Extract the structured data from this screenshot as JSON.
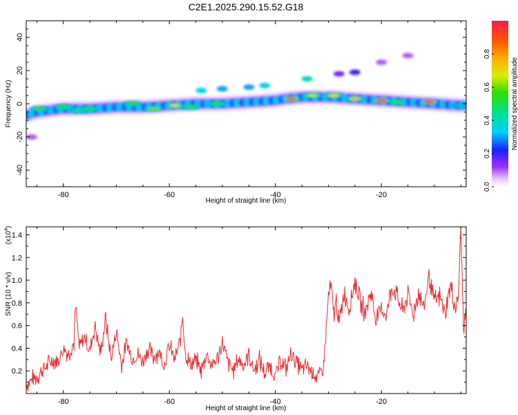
{
  "figure_title": "C2E1.2025.290.15.52.G18",
  "colors": {
    "snr_line": "#e8292d",
    "axis": "#000000"
  },
  "chart_data": [
    {
      "type": "heatmap",
      "title": "C2E1.2025.290.15.52.G18",
      "xlabel": "Height of straight line (km)",
      "ylabel": "Frequency (Hz)",
      "xlim": [
        -87,
        -4
      ],
      "ylim": [
        -50,
        50
      ],
      "xticks": [
        -80,
        -60,
        -40,
        -20
      ],
      "yticks": [
        40,
        20,
        0,
        -20,
        -40
      ],
      "colorbar": {
        "label": "Normalized spectral amplitude",
        "range": [
          0,
          1
        ],
        "ticks": [
          "0.0",
          "0.2",
          "0.4",
          "0.6",
          "0.8"
        ],
        "tick_values": [
          0,
          0.2,
          0.4,
          0.6,
          0.8
        ]
      },
      "ridge": {
        "x": [
          -87,
          -85,
          -80,
          -75,
          -70,
          -65,
          -60,
          -55,
          -50,
          -45,
          -40,
          -38,
          -35,
          -30,
          -25,
          -20,
          -15,
          -10,
          -5
        ],
        "freq": [
          -7,
          -5,
          -3,
          -3,
          -2,
          -2,
          -1,
          0,
          0,
          1,
          2,
          3,
          4,
          4,
          3,
          2,
          1,
          0,
          -1
        ]
      },
      "hotspots": [
        {
          "x": -84.5,
          "f": -3,
          "amp": 0.55
        },
        {
          "x": -80,
          "f": -2,
          "amp": 0.55
        },
        {
          "x": -77,
          "f": -4,
          "amp": 0.5
        },
        {
          "x": -75,
          "f": -3,
          "amp": 0.5
        },
        {
          "x": -67,
          "f": 0,
          "amp": 0.55
        },
        {
          "x": -63,
          "f": -3,
          "amp": 0.6
        },
        {
          "x": -59,
          "f": -1,
          "amp": 0.7
        },
        {
          "x": -56,
          "f": -2,
          "amp": 0.55
        },
        {
          "x": -51,
          "f": 0,
          "amp": 0.5
        },
        {
          "x": -37,
          "f": 3,
          "amp": 0.95
        },
        {
          "x": -33,
          "f": 5,
          "amp": 0.65
        },
        {
          "x": -29,
          "f": 5,
          "amp": 0.7
        },
        {
          "x": -25,
          "f": 3,
          "amp": 0.75
        },
        {
          "x": -20,
          "f": 2,
          "amp": 0.98
        },
        {
          "x": -17,
          "f": 1,
          "amp": 0.55
        },
        {
          "x": -11,
          "f": 1,
          "amp": 1.0
        },
        {
          "x": -5,
          "f": -1,
          "amp": 0.4
        }
      ],
      "secondary": [
        {
          "x": -54,
          "f": 8,
          "amp": 0.35
        },
        {
          "x": -50,
          "f": 9,
          "amp": 0.3
        },
        {
          "x": -45,
          "f": 10,
          "amp": 0.3
        },
        {
          "x": -42,
          "f": 11,
          "amp": 0.35
        },
        {
          "x": -34,
          "f": 15,
          "amp": 0.4
        },
        {
          "x": -28,
          "f": 18,
          "amp": 0.15
        },
        {
          "x": -25,
          "f": 19,
          "amp": 0.2
        },
        {
          "x": -20,
          "f": 25,
          "amp": 0.1
        },
        {
          "x": -15,
          "f": 29,
          "amp": 0.1
        },
        {
          "x": -86,
          "f": -20,
          "amp": 0.1
        }
      ]
    },
    {
      "type": "line",
      "xlabel": "Height of straight line (km)",
      "ylabel": "SNR (10 * v/v)",
      "y_multiplier": "(x10",
      "y_multiplier_exp": "4",
      "xlim": [
        -87,
        -4
      ],
      "ylim": [
        0,
        1.47
      ],
      "xticks": [
        -80,
        -60,
        -40,
        -20
      ],
      "yticks": [
        "0.2",
        "0.4",
        "0.6",
        "0.8",
        "1.0",
        "1.2",
        "1.4"
      ],
      "ytick_values": [
        0.2,
        0.4,
        0.6,
        0.8,
        1.0,
        1.2,
        1.4
      ],
      "series": [
        {
          "name": "SNR",
          "x": [
            -87,
            -86,
            -85,
            -84,
            -83,
            -82,
            -81,
            -80,
            -79,
            -78,
            -77.7,
            -77,
            -76,
            -75,
            -74,
            -73,
            -72,
            -71,
            -70,
            -69,
            -68,
            -67,
            -66,
            -65,
            -64,
            -63,
            -62,
            -61,
            -60,
            -59,
            -58,
            -57.5,
            -57,
            -56,
            -55,
            -54,
            -53,
            -52,
            -51,
            -50,
            -49,
            -48,
            -47,
            -46,
            -45,
            -44,
            -43,
            -42,
            -41,
            -40,
            -39,
            -38,
            -37,
            -36,
            -35,
            -34,
            -33,
            -32,
            -31,
            -30.5,
            -30,
            -29.5,
            -29,
            -28.5,
            -28,
            -27,
            -26,
            -25,
            -24,
            -23,
            -22,
            -21,
            -20,
            -19,
            -18,
            -17,
            -16,
            -15,
            -14,
            -13,
            -12,
            -11,
            -10,
            -9,
            -8,
            -7,
            -6,
            -5.5,
            -5,
            -4.5,
            -4
          ],
          "values": [
            0.08,
            0.12,
            0.15,
            0.2,
            0.25,
            0.3,
            0.28,
            0.4,
            0.35,
            0.45,
            0.76,
            0.4,
            0.5,
            0.38,
            0.6,
            0.35,
            0.66,
            0.3,
            0.55,
            0.25,
            0.45,
            0.3,
            0.35,
            0.28,
            0.4,
            0.32,
            0.38,
            0.25,
            0.42,
            0.3,
            0.45,
            0.69,
            0.35,
            0.25,
            0.3,
            0.2,
            0.35,
            0.25,
            0.3,
            0.45,
            0.28,
            0.2,
            0.3,
            0.25,
            0.35,
            0.2,
            0.3,
            0.18,
            0.25,
            0.15,
            0.3,
            0.22,
            0.35,
            0.28,
            0.2,
            0.25,
            0.18,
            0.15,
            0.2,
            0.5,
            0.85,
            0.95,
            0.7,
            0.82,
            0.6,
            0.9,
            0.75,
            1.0,
            0.8,
            0.72,
            0.9,
            0.65,
            0.75,
            0.7,
            0.95,
            0.85,
            0.72,
            0.88,
            0.7,
            0.9,
            0.75,
            1.05,
            0.8,
            0.85,
            0.7,
            0.95,
            0.75,
            0.85,
            1.45,
            0.55,
            0.75
          ]
        }
      ]
    }
  ]
}
